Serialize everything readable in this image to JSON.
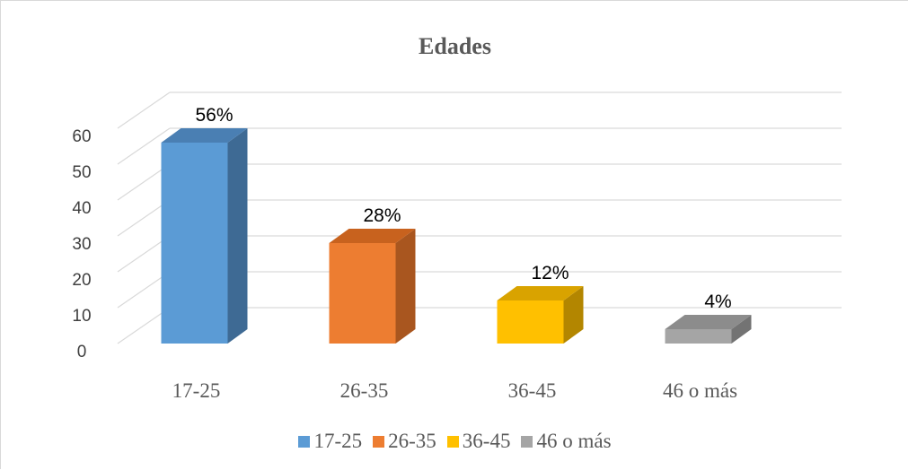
{
  "chart_data": {
    "type": "bar",
    "title": "Edades",
    "categories": [
      "17-25",
      "26-35",
      "36-45",
      "46 o más"
    ],
    "values": [
      56,
      28,
      12,
      4
    ],
    "data_labels": [
      "56%",
      "28%",
      "12%",
      "4%"
    ],
    "ylim": [
      0,
      60
    ],
    "yticks": [
      0,
      10,
      20,
      30,
      40,
      50,
      60
    ],
    "grid": true,
    "three_d": true,
    "legend_position": "bottom",
    "legend": [
      "17-25",
      "26-35",
      "36-45",
      "46 o más"
    ],
    "colors": [
      "#5b9bd5",
      "#ed7d31",
      "#ffc000",
      "#a5a5a5"
    ],
    "side_colors": [
      "#3e6a94",
      "#a9561f",
      "#b38600",
      "#737373"
    ],
    "top_colors": [
      "#4a7fb3",
      "#c8621e",
      "#d9a300",
      "#8c8c8c"
    ]
  }
}
